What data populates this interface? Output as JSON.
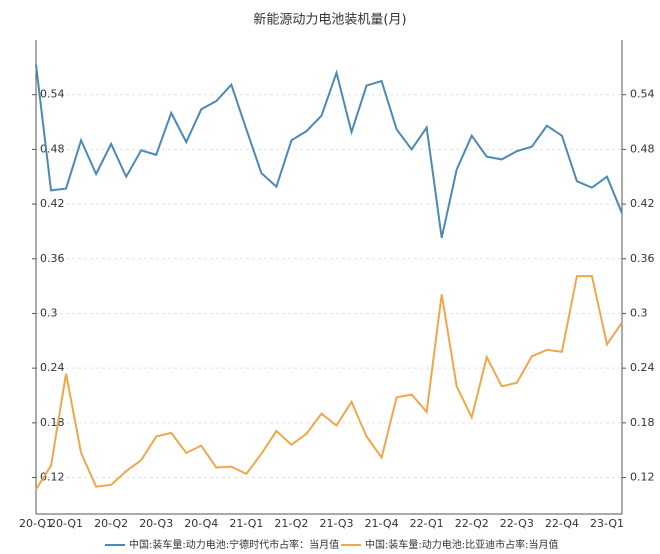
{
  "chart_data": {
    "type": "line",
    "title": "新能源动力电池装机量(月)",
    "categories": [
      "20-Q1",
      null,
      "20-Q1",
      null,
      null,
      "20-Q2",
      null,
      null,
      "20-Q3",
      null,
      null,
      "20-Q4",
      null,
      null,
      "21-Q1",
      null,
      null,
      "21-Q2",
      null,
      null,
      "21-Q3",
      null,
      null,
      "21-Q4",
      null,
      null,
      "22-Q1",
      null,
      null,
      "22-Q2",
      null,
      null,
      "22-Q3",
      null,
      null,
      "22-Q4",
      null,
      null,
      "23-Q1",
      null
    ],
    "series": [
      {
        "name": "中国:装车量:动力电池:宁德时代市占率：当月值",
        "color": "#4a8ab5",
        "values": [
          0.573,
          0.435,
          0.437,
          0.49,
          0.453,
          0.486,
          0.45,
          0.479,
          0.474,
          0.52,
          0.488,
          0.524,
          0.533,
          0.551,
          0.502,
          0.454,
          0.439,
          0.49,
          0.5,
          0.517,
          0.564,
          0.499,
          0.55,
          0.555,
          0.502,
          0.48,
          0.504,
          0.383,
          0.458,
          0.495,
          0.472,
          0.469,
          0.478,
          0.483,
          0.506,
          0.495,
          0.445,
          0.438,
          0.45,
          0.41
        ]
      },
      {
        "name": "中国:装车量:动力电池:比亚迪市占率:当月值",
        "color": "#f0a64a",
        "axis": "y2",
        "values": [
          0.107,
          0.133,
          0.234,
          0.147,
          0.11,
          0.112,
          0.127,
          0.139,
          0.165,
          0.169,
          0.147,
          0.155,
          0.131,
          0.132,
          0.124,
          0.146,
          0.171,
          0.156,
          0.168,
          0.19,
          0.177,
          0.203,
          0.165,
          0.142,
          0.208,
          0.211,
          0.192,
          0.321,
          0.22,
          0.186,
          0.252,
          0.22,
          0.224,
          0.253,
          0.26,
          0.258,
          0.341,
          0.341,
          0.266,
          0.29
        ]
      }
    ],
    "ylim": [
      0.08,
      0.6
    ],
    "yticks": [
      0.12,
      0.18,
      0.24,
      0.3,
      0.36,
      0.42,
      0.48,
      0.54
    ],
    "y2lim": [
      0.08,
      0.6
    ],
    "y2ticks": [
      0.12,
      0.18,
      0.24,
      0.3,
      0.36,
      0.42,
      0.48,
      0.54
    ],
    "grid": true,
    "legend": "bottom"
  }
}
